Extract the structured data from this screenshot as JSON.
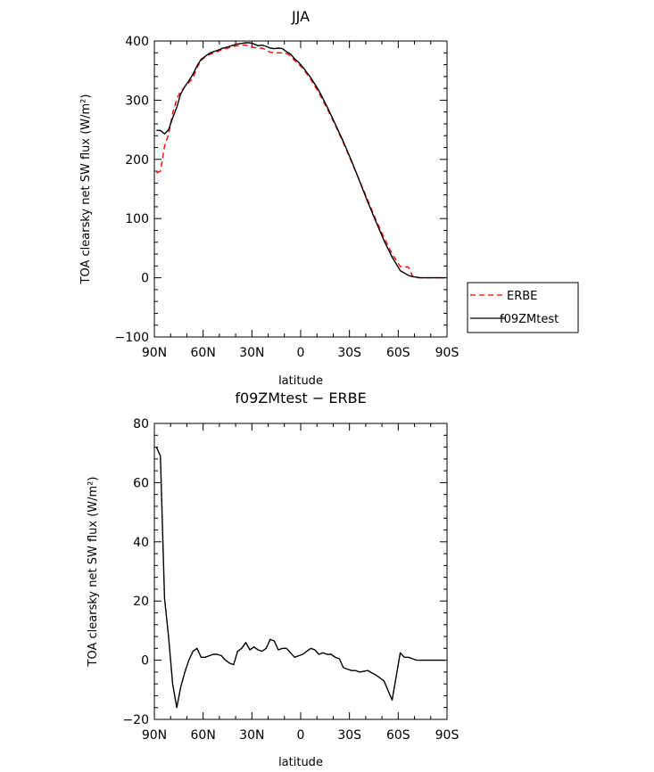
{
  "chart_data": [
    {
      "type": "line",
      "title": "JJA",
      "xlabel": "latitude",
      "ylabel": "TOA clearsky net SW flux (W/m²)",
      "xlim": [
        90,
        -90
      ],
      "ylim": [
        -100,
        400
      ],
      "x_ticks": [
        90,
        60,
        30,
        0,
        -30,
        -60,
        -90
      ],
      "x_tick_labels": [
        "90N",
        "60N",
        "30N",
        "0",
        "30S",
        "60S",
        "90S"
      ],
      "y_ticks": [
        -100,
        0,
        100,
        200,
        300,
        400
      ],
      "y_tick_labels": [
        "−100",
        "0",
        "100",
        "200",
        "300",
        "400"
      ],
      "legend": {
        "placement": "right",
        "entries": [
          "ERBE",
          "f09ZMtest"
        ]
      },
      "series": [
        {
          "name": "ERBE",
          "color": "#ff0000",
          "dash": "dashed",
          "x": [
            88.75,
            86.25,
            83.75,
            81.25,
            78.75,
            76.25,
            73.75,
            71.25,
            68.75,
            66.25,
            63.75,
            61.25,
            58.75,
            56.25,
            53.75,
            51.25,
            48.75,
            46.25,
            43.75,
            41.25,
            38.75,
            36.25,
            33.75,
            31.25,
            28.75,
            26.25,
            23.75,
            21.25,
            18.75,
            16.25,
            13.75,
            11.25,
            8.75,
            6.25,
            3.75,
            1.25,
            -1.25,
            -6.25,
            -11.25,
            -16.25,
            -21.25,
            -26.25,
            -31.25,
            -36.25,
            -41.25,
            -46.25,
            -51.25,
            -56.25,
            -61.25,
            -66.25,
            -68.75,
            -71.25,
            -73.75,
            -78.75,
            -83.75,
            -88.75
          ],
          "y": [
            177,
            180,
            222,
            242,
            278,
            302,
            315,
            323,
            330,
            338,
            355,
            367,
            373,
            377,
            380,
            382,
            385,
            387,
            389,
            391,
            392,
            393,
            393,
            391,
            389,
            388,
            388,
            385,
            381,
            380,
            380,
            380,
            379,
            375,
            367,
            361,
            354,
            335,
            312,
            286,
            258,
            228,
            196,
            164,
            131,
            98,
            68,
            40,
            19,
            18,
            3,
            0,
            0,
            0,
            0,
            0
          ]
        },
        {
          "name": "f09ZMtest",
          "color": "#000000",
          "dash": "solid",
          "x": [
            88.75,
            86.25,
            83.75,
            81.25,
            78.75,
            76.25,
            73.75,
            71.25,
            68.75,
            66.25,
            63.75,
            61.25,
            58.75,
            56.25,
            53.75,
            51.25,
            48.75,
            46.25,
            43.75,
            41.25,
            38.75,
            36.25,
            33.75,
            31.25,
            28.75,
            26.25,
            23.75,
            21.25,
            18.75,
            16.25,
            13.75,
            11.25,
            8.75,
            6.25,
            3.75,
            1.25,
            -1.25,
            -6.25,
            -11.25,
            -16.25,
            -21.25,
            -26.25,
            -31.25,
            -36.25,
            -41.25,
            -46.25,
            -51.25,
            -56.25,
            -61.25,
            -66.25,
            -68.75,
            -71.25,
            -73.75,
            -78.75,
            -83.75,
            -88.75
          ],
          "y": [
            249,
            249,
            243,
            250,
            270,
            288,
            311,
            323,
            333,
            344,
            358,
            369,
            374,
            379,
            382,
            384,
            387,
            389,
            391,
            393,
            395,
            396,
            397,
            397,
            395,
            392,
            393,
            391,
            388,
            387,
            388,
            387,
            382,
            378,
            370,
            364,
            356,
            338,
            316,
            289,
            260,
            230,
            198,
            163,
            128,
            95,
            63,
            35,
            12,
            4,
            2,
            1,
            0,
            0,
            0,
            0
          ]
        }
      ]
    },
    {
      "type": "line",
      "title": "f09ZMtest − ERBE",
      "xlabel": "latitude",
      "ylabel": "TOA clearsky net SW flux (W/m²)",
      "xlim": [
        90,
        -90
      ],
      "ylim": [
        -20,
        80
      ],
      "x_ticks": [
        90,
        60,
        30,
        0,
        -30,
        -60,
        -90
      ],
      "x_tick_labels": [
        "90N",
        "60N",
        "30N",
        "0",
        "30S",
        "60S",
        "90S"
      ],
      "y_ticks": [
        -20,
        0,
        20,
        40,
        60,
        80
      ],
      "y_tick_labels": [
        "−20",
        "0",
        "20",
        "40",
        "60",
        "80"
      ],
      "series": [
        {
          "color": "#000000",
          "dash": "solid",
          "x": [
            88.75,
            86.25,
            83.75,
            81.25,
            78.75,
            76.25,
            73.75,
            71.25,
            68.75,
            66.25,
            63.75,
            61.25,
            58.75,
            56.25,
            53.75,
            51.25,
            48.75,
            46.25,
            43.75,
            41.25,
            38.75,
            36.25,
            33.75,
            31.25,
            28.75,
            26.25,
            23.75,
            21.25,
            18.75,
            16.25,
            13.75,
            11.25,
            8.75,
            6.25,
            3.75,
            1.25,
            -1.25,
            -3.75,
            -6.25,
            -8.75,
            -11.25,
            -13.75,
            -16.25,
            -18.75,
            -21.25,
            -23.75,
            -26.25,
            -28.75,
            -31.25,
            -33.75,
            -36.25,
            -41.25,
            -46.25,
            -51.25,
            -56.25,
            -61.25,
            -63.75,
            -66.25,
            -68.75,
            -71.25,
            -73.75,
            -76.25,
            -78.75,
            -83.75,
            -88.75
          ],
          "y": [
            72,
            69,
            21,
            8,
            -8,
            -16,
            -9,
            -4,
            0,
            3,
            4,
            1,
            1,
            1.5,
            2,
            2,
            1.5,
            0,
            -1,
            -1.5,
            3,
            4,
            6,
            3.5,
            4.5,
            3.5,
            3,
            4,
            7,
            6.5,
            3.5,
            4,
            4,
            2.5,
            1,
            1.5,
            2,
            3,
            4,
            3.5,
            2,
            2.5,
            2,
            2,
            1,
            0.5,
            -2.5,
            -3,
            -3.5,
            -3.5,
            -4,
            -3.5,
            -5,
            -7,
            -13.5,
            2.5,
            1,
            1,
            0.5,
            0,
            0,
            0,
            0,
            0,
            0
          ]
        }
      ]
    }
  ]
}
